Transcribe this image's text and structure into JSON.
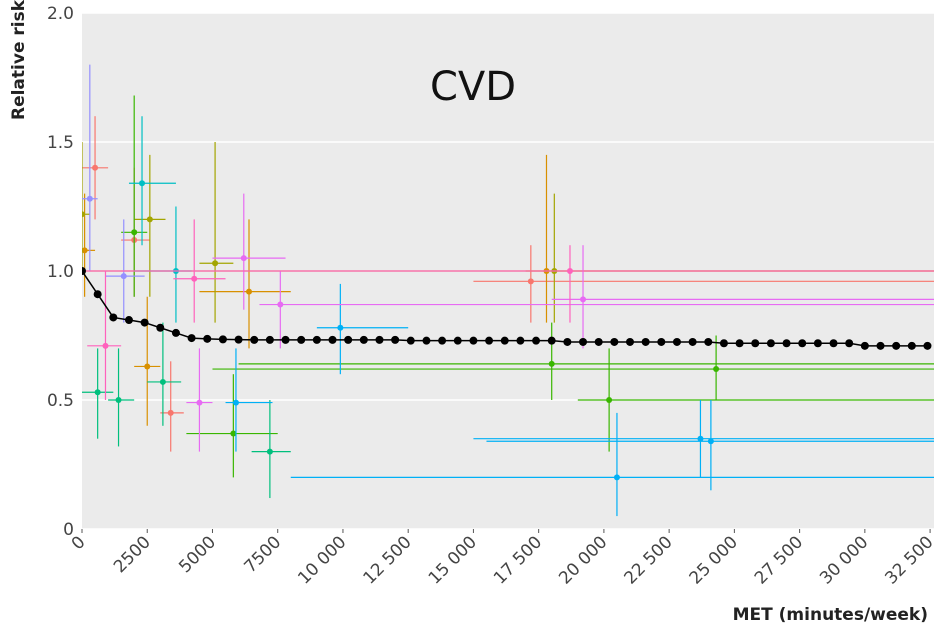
{
  "chart_data": {
    "type": "scatter",
    "title": "CVD",
    "x_label": "MET (minutes/week)",
    "y_label": "Relative risk",
    "xlim": [
      0,
      32650
    ],
    "ylim": [
      0,
      2
    ],
    "xticks": [
      0,
      2500,
      5000,
      7500,
      {
        "value": 10000,
        "label": "10 000"
      },
      {
        "value": 12500,
        "label": "12 500"
      },
      {
        "value": 15000,
        "label": "15 000"
      },
      {
        "value": 17500,
        "label": "17 500"
      },
      {
        "value": 20000,
        "label": "20 000"
      },
      {
        "value": 22500,
        "label": "22 500"
      },
      {
        "value": 25000,
        "label": "25 000"
      },
      {
        "value": 27500,
        "label": "27 500"
      },
      {
        "value": 30000,
        "label": "30 000"
      },
      {
        "value": 32500,
        "label": "32 500"
      }
    ],
    "yticks": [
      0,
      0.5,
      {
        "value": 1,
        "label": "1.0"
      },
      1.5,
      {
        "value": 2,
        "label": "2.0"
      }
    ],
    "grid": true,
    "background": "#ebebeb",
    "series": [
      {
        "color": "#F8766D",
        "x": [
          500,
          3400,
          2000,
          17200
        ],
        "values": [
          1.4,
          0.45,
          1.12,
          0.96
        ],
        "y_low": [
          1.2,
          0.3,
          0.9,
          0.8
        ],
        "y_high": [
          1.6,
          0.65,
          1.4,
          1.1
        ],
        "x_low": [
          0,
          3000,
          1500,
          15000
        ],
        "x_high": [
          1000,
          3900,
          2600,
          32650
        ]
      },
      {
        "color": "#D89000",
        "x": [
          100,
          6400,
          2500,
          17800
        ],
        "values": [
          1.08,
          0.92,
          0.63,
          1.0
        ],
        "y_low": [
          0.9,
          0.7,
          0.4,
          0.8
        ],
        "y_high": [
          1.3,
          1.2,
          0.9,
          1.45
        ],
        "x_low": [
          0,
          4500,
          2000,
          17000
        ],
        "x_high": [
          500,
          8000,
          3000,
          32650
        ]
      },
      {
        "color": "#A3A500",
        "x": [
          0,
          2600,
          5100,
          18100
        ],
        "values": [
          1.22,
          1.2,
          1.03,
          1.0
        ],
        "y_low": [
          1.0,
          0.9,
          0.8,
          0.8
        ],
        "y_high": [
          1.5,
          1.45,
          1.5,
          1.3
        ],
        "x_low": [
          0,
          2000,
          4500,
          0
        ],
        "x_high": [
          300,
          3200,
          5800,
          32650
        ]
      },
      {
        "color": "#39B600",
        "x": [
          2000,
          5800,
          20200,
          24300,
          18000
        ],
        "values": [
          1.15,
          0.37,
          0.5,
          0.62,
          0.64
        ],
        "y_low": [
          0.9,
          0.2,
          0.3,
          0.5,
          0.5
        ],
        "y_high": [
          1.68,
          0.6,
          0.7,
          0.75,
          0.8
        ],
        "x_low": [
          1500,
          4000,
          19000,
          5000,
          6000
        ],
        "x_high": [
          2500,
          7500,
          32650,
          32650,
          32650
        ]
      },
      {
        "color": "#00BF7D",
        "x": [
          600,
          1400,
          7200,
          3100
        ],
        "values": [
          0.53,
          0.5,
          0.3,
          0.57
        ],
        "y_low": [
          0.35,
          0.32,
          0.12,
          0.4
        ],
        "y_high": [
          0.7,
          0.7,
          0.5,
          0.8
        ],
        "x_low": [
          0,
          1000,
          6500,
          2500
        ],
        "x_high": [
          1200,
          2000,
          8000,
          3800
        ]
      },
      {
        "color": "#00BFC4",
        "x": [
          2300,
          3600
        ],
        "values": [
          1.34,
          1.0
        ],
        "y_low": [
          1.1,
          0.8
        ],
        "y_high": [
          1.6,
          1.25
        ],
        "x_low": [
          1800,
          2000
        ],
        "x_high": [
          3600,
          4200
        ]
      },
      {
        "color": "#00B0F6",
        "x": [
          5900,
          9900,
          20500,
          23700,
          24100
        ],
        "values": [
          0.49,
          0.78,
          0.2,
          0.35,
          0.34
        ],
        "y_low": [
          0.3,
          0.6,
          0.05,
          0.2,
          0.15
        ],
        "y_high": [
          0.7,
          0.95,
          0.45,
          0.5,
          0.5
        ],
        "x_low": [
          5500,
          9000,
          8000,
          15000,
          15500
        ],
        "x_high": [
          7300,
          12500,
          32650,
          32650,
          32650
        ]
      },
      {
        "color": "#9590FF",
        "x": [
          300,
          1600
        ],
        "values": [
          1.28,
          0.98
        ],
        "y_low": [
          1.0,
          0.8
        ],
        "y_high": [
          1.8,
          1.2
        ],
        "x_low": [
          0,
          900
        ],
        "x_high": [
          600,
          2400
        ]
      },
      {
        "color": "#E76BF3",
        "x": [
          6200,
          4500,
          19200,
          7600
        ],
        "values": [
          1.05,
          0.49,
          0.89,
          0.87
        ],
        "y_low": [
          0.85,
          0.3,
          0.7,
          0.7
        ],
        "y_high": [
          1.3,
          0.7,
          1.1,
          1.0
        ],
        "x_low": [
          5000,
          4000,
          18000,
          6800
        ],
        "x_high": [
          7800,
          5000,
          32650,
          32650
        ]
      },
      {
        "color": "#FF62BC",
        "x": [
          900,
          4300,
          18700
        ],
        "values": [
          0.71,
          0.97,
          1.0
        ],
        "y_low": [
          0.5,
          0.8,
          0.8
        ],
        "y_high": [
          1.0,
          1.2,
          1.1
        ],
        "x_low": [
          200,
          3500,
          0
        ],
        "x_high": [
          1500,
          5500,
          32650
        ]
      }
    ],
    "curve": {
      "color": "#000000",
      "x": [
        0,
        600,
        1200,
        1800,
        2400,
        3000,
        3600,
        4200,
        4800,
        5400,
        6000,
        6600,
        7200,
        7800,
        8400,
        9000,
        9600,
        10200,
        10800,
        11400,
        12000,
        12600,
        13200,
        13800,
        14400,
        15000,
        15600,
        16200,
        16800,
        17400,
        18000,
        18600,
        19200,
        19800,
        20400,
        21000,
        21600,
        22200,
        22800,
        23400,
        24000,
        24600,
        25200,
        25800,
        26400,
        27000,
        27600,
        28200,
        28800,
        29400,
        30000,
        30600,
        31200,
        31800,
        32400
      ],
      "values": [
        1.0,
        0.91,
        0.82,
        0.81,
        0.8,
        0.78,
        0.76,
        0.74,
        0.737,
        0.735,
        0.734,
        0.733,
        0.733,
        0.733,
        0.733,
        0.733,
        0.733,
        0.733,
        0.733,
        0.733,
        0.733,
        0.73,
        0.73,
        0.73,
        0.73,
        0.73,
        0.73,
        0.73,
        0.73,
        0.73,
        0.73,
        0.725,
        0.725,
        0.725,
        0.725,
        0.725,
        0.725,
        0.725,
        0.725,
        0.725,
        0.725,
        0.72,
        0.72,
        0.72,
        0.72,
        0.72,
        0.72,
        0.72,
        0.72,
        0.72,
        0.71,
        0.71,
        0.71,
        0.71,
        0.71
      ]
    }
  }
}
